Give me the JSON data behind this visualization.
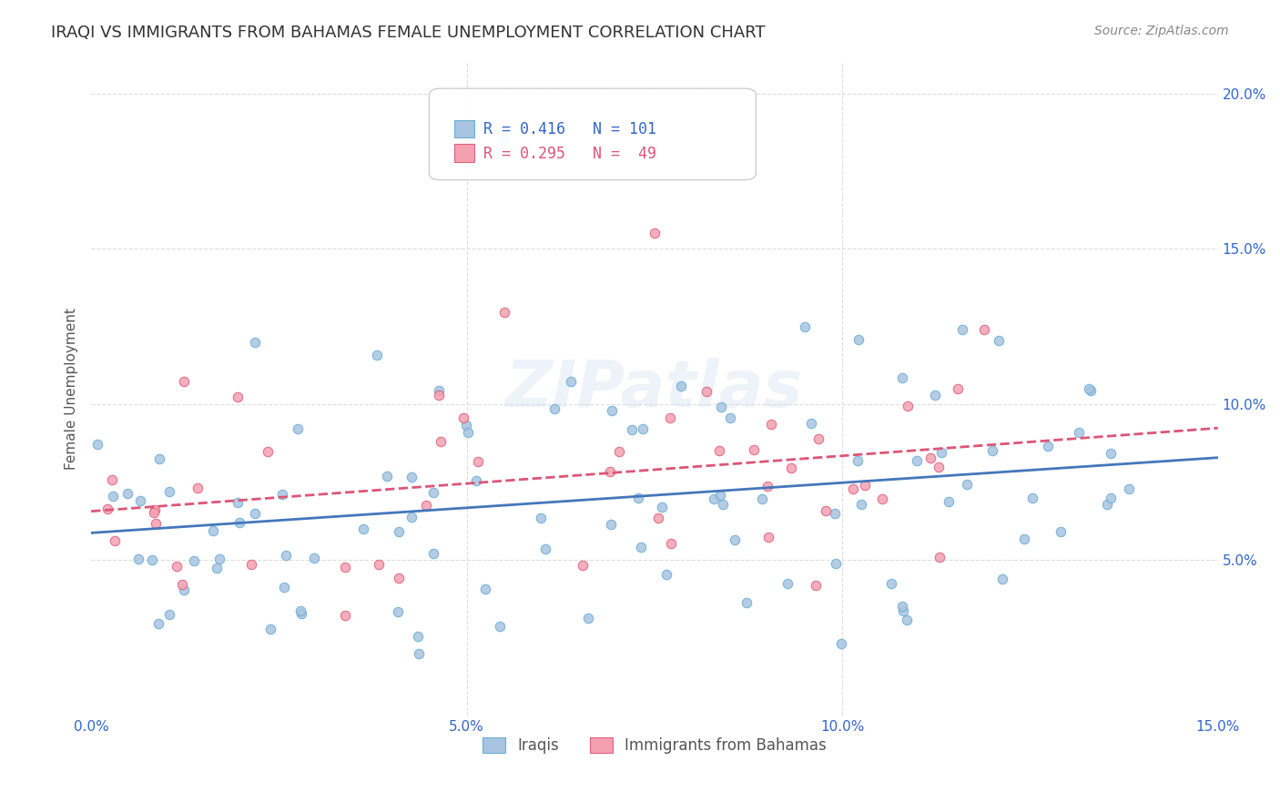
{
  "title": "IRAQI VS IMMIGRANTS FROM BAHAMAS FEMALE UNEMPLOYMENT CORRELATION CHART",
  "source": "Source: ZipAtlas.com",
  "xlabel_bottom": "",
  "ylabel": "Female Unemployment",
  "x_min": 0.0,
  "x_max": 0.15,
  "y_min": 0.0,
  "y_max": 0.21,
  "x_ticks": [
    0.0,
    0.05,
    0.1,
    0.15
  ],
  "x_tick_labels": [
    "0.0%",
    "5.0%",
    "10.0%",
    "15.0%"
  ],
  "y_ticks": [
    0.05,
    0.1,
    0.15,
    0.2
  ],
  "y_tick_labels": [
    "5.0%",
    "10.0%",
    "15.0%",
    "20.0%"
  ],
  "iraqis_color": "#a8c4e0",
  "iraqis_edge_color": "#6aaed6",
  "bahamas_color": "#f4a0b0",
  "bahamas_edge_color": "#e06080",
  "line_iraqis_color": "#4477bb",
  "line_bahamas_color": "#dd5577",
  "legend_label_iraqis": "Iraqis",
  "legend_label_bahamas": "Immigrants from Bahamas",
  "legend_R_iraqis": "R = 0.416",
  "legend_N_iraqis": "N = 101",
  "legend_R_bahamas": "R = 0.295",
  "legend_N_bahamas": "N =  49",
  "iraqis_R": 0.416,
  "iraqis_N": 101,
  "bahamas_R": 0.295,
  "bahamas_N": 49,
  "watermark": "ZIPatlas",
  "background_color": "#ffffff",
  "grid_color": "#dddddd",
  "marker_size": 9,
  "title_fontsize": 13,
  "axis_fontsize": 11,
  "tick_fontsize": 11,
  "legend_fontsize": 12,
  "source_fontsize": 10
}
